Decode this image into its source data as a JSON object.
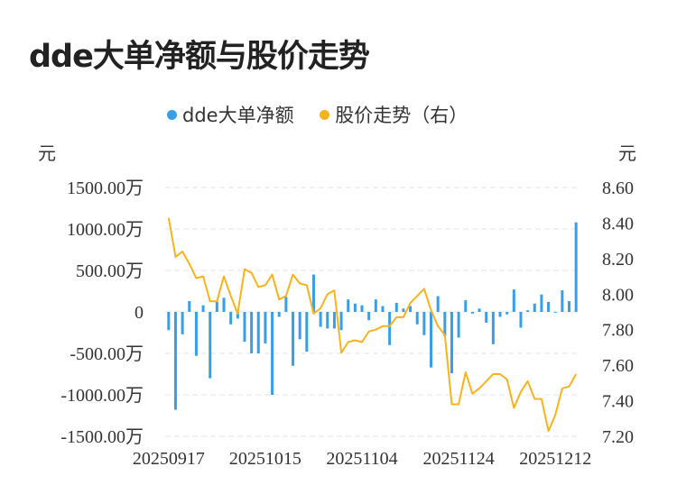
{
  "title": "dde大单净额与股价走势",
  "legend": [
    {
      "label": "dde大单净额",
      "color": "#3a9ee6"
    },
    {
      "label": "股价走势（右）",
      "color": "#f5b320"
    }
  ],
  "chart_data": {
    "type": "bar+line",
    "y_left_unit": "元",
    "y_right_unit": "元",
    "y_left_ticks": [
      "1500.00万",
      "1000.00万",
      "500.00万",
      "0",
      "-500.00万",
      "-1000.00万",
      "-1500.00万"
    ],
    "y_left_range": [
      -1500,
      1500
    ],
    "y_right_ticks": [
      "8.60",
      "8.40",
      "8.20",
      "8.00",
      "7.80",
      "7.60",
      "7.40",
      "7.20"
    ],
    "y_right_range": [
      7.2,
      8.6
    ],
    "x_tick_labels": [
      "20250917",
      "20251015",
      "20251104",
      "20251124",
      "20251212"
    ],
    "x_tick_indices": [
      0,
      14,
      28,
      42,
      56
    ],
    "grid": true,
    "series": [
      {
        "name": "dde大单净额",
        "type": "bar",
        "color": "#3a9ee6",
        "unit": "万元",
        "values": [
          -220,
          -1180,
          -270,
          130,
          -530,
          80,
          -800,
          120,
          170,
          -150,
          -80,
          -360,
          -500,
          -500,
          -380,
          -1000,
          -60,
          180,
          -650,
          -330,
          -480,
          450,
          -180,
          -200,
          -200,
          -220,
          150,
          100,
          80,
          -100,
          150,
          70,
          -400,
          110,
          40,
          70,
          -150,
          -280,
          -670,
          190,
          -290,
          -740,
          -310,
          140,
          -20,
          40,
          -130,
          -390,
          -60,
          -30,
          270,
          -190,
          20,
          100,
          210,
          120,
          -10,
          260,
          130,
          1080
        ]
      },
      {
        "name": "股价走势（右）",
        "type": "line",
        "color": "#f5b320",
        "unit": "元",
        "values": [
          8.43,
          8.21,
          8.24,
          8.17,
          8.09,
          8.1,
          7.96,
          7.96,
          8.1,
          7.99,
          7.89,
          8.14,
          8.12,
          8.04,
          8.05,
          8.11,
          7.97,
          7.99,
          8.11,
          8.06,
          8.05,
          7.89,
          7.92,
          8.0,
          8.02,
          7.67,
          7.73,
          7.74,
          7.73,
          7.79,
          7.8,
          7.82,
          7.82,
          7.87,
          7.87,
          7.95,
          7.99,
          8.03,
          7.91,
          7.82,
          7.77,
          7.38,
          7.38,
          7.56,
          7.44,
          7.47,
          7.51,
          7.55,
          7.55,
          7.52,
          7.36,
          7.45,
          7.51,
          7.41,
          7.41,
          7.23,
          7.32,
          7.47,
          7.48,
          7.55
        ]
      }
    ]
  }
}
